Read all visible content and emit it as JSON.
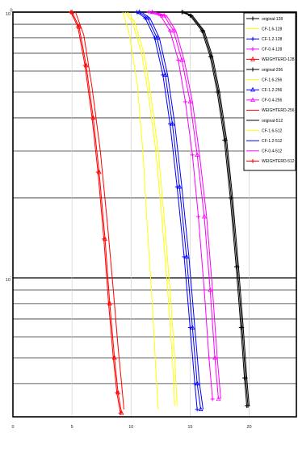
{
  "chart_data": {
    "type": "line",
    "title": "",
    "xlabel": "",
    "ylabel": "",
    "xlim": [
      0,
      24
    ],
    "ylim": [
      0.03,
      1.0
    ],
    "yscale": "log",
    "grid": true,
    "legend_placement": "top-right",
    "x_ticks": [
      0,
      5,
      10,
      15,
      20
    ],
    "x_tick_labels": [
      "0",
      "5",
      "10",
      "15",
      "20"
    ],
    "y_ticks": [
      0.1,
      1.0
    ],
    "y_tick_labels": [
      {
        "base": "10",
        "exp": "-1"
      },
      {
        "base": "10",
        "exp": "0"
      }
    ],
    "series": [
      {
        "name": "original-128",
        "color": "#000000",
        "marker": "plus",
        "x": [
          14.3,
          15.0,
          16.0,
          16.7,
          17.3,
          17.9,
          18.4,
          18.9,
          19.3,
          19.6,
          19.8
        ],
        "y": [
          1.0,
          0.97,
          0.85,
          0.68,
          0.5,
          0.33,
          0.2,
          0.11,
          0.065,
          0.042,
          0.033
        ]
      },
      {
        "name": "CF-1.6-128",
        "color": "#ffff00",
        "marker": "none",
        "x": [
          9.3,
          9.8,
          10.5,
          11.0,
          11.4,
          11.8,
          12.1,
          12.3
        ],
        "y": [
          1.0,
          0.85,
          0.55,
          0.3,
          0.15,
          0.08,
          0.045,
          0.032
        ]
      },
      {
        "name": "CF-1.2-128",
        "color": "#0000ff",
        "marker": "plus",
        "x": [
          10.5,
          11.2,
          12.0,
          12.7,
          13.3,
          13.9,
          14.5,
          15.0,
          15.4,
          15.6
        ],
        "y": [
          1.0,
          0.95,
          0.8,
          0.58,
          0.38,
          0.22,
          0.12,
          0.065,
          0.04,
          0.032
        ]
      },
      {
        "name": "CF-0.4-128",
        "color": "#ff00ff",
        "marker": "plus",
        "x": [
          11.5,
          12.5,
          13.3,
          14.0,
          14.6,
          15.2,
          15.7,
          16.2,
          16.6,
          16.9
        ],
        "y": [
          1.0,
          0.97,
          0.85,
          0.66,
          0.46,
          0.29,
          0.17,
          0.09,
          0.05,
          0.035
        ]
      },
      {
        "name": "WEIGHTERD-128",
        "color": "#ff0000",
        "marker": "triangle",
        "x": [
          5.0,
          5.6,
          6.2,
          6.8,
          7.3,
          7.8,
          8.2,
          8.6,
          8.9,
          9.2
        ],
        "y": [
          1.0,
          0.88,
          0.63,
          0.4,
          0.25,
          0.14,
          0.08,
          0.05,
          0.037,
          0.031
        ]
      },
      {
        "name": "original-256",
        "color": "#000000",
        "marker": "plus",
        "x": [
          14.4,
          15.1,
          16.1,
          16.8,
          17.4,
          18.0,
          18.5,
          19.0,
          19.4,
          19.7,
          19.9
        ],
        "y": [
          1.0,
          0.97,
          0.85,
          0.68,
          0.5,
          0.33,
          0.2,
          0.11,
          0.065,
          0.042,
          0.033
        ]
      },
      {
        "name": "CF-1.6-256",
        "color": "#ffff00",
        "marker": "none",
        "x": [
          9.5,
          10.1,
          10.9,
          11.5,
          12.1,
          12.6,
          13.1,
          13.5,
          13.7
        ],
        "y": [
          1.0,
          0.92,
          0.7,
          0.48,
          0.3,
          0.17,
          0.09,
          0.05,
          0.033
        ]
      },
      {
        "name": "CF-1.2-256",
        "color": "#0000ff",
        "marker": "triangle",
        "x": [
          10.7,
          11.4,
          12.2,
          12.9,
          13.5,
          14.1,
          14.7,
          15.2,
          15.6,
          15.9
        ],
        "y": [
          1.0,
          0.95,
          0.8,
          0.58,
          0.38,
          0.22,
          0.12,
          0.065,
          0.04,
          0.032
        ]
      },
      {
        "name": "CF-0.4-256",
        "color": "#ff00ff",
        "marker": "triangle",
        "x": [
          11.8,
          12.8,
          13.6,
          14.3,
          15.0,
          15.6,
          16.2,
          16.7,
          17.1,
          17.4
        ],
        "y": [
          1.0,
          0.97,
          0.85,
          0.66,
          0.46,
          0.29,
          0.17,
          0.09,
          0.05,
          0.035
        ]
      },
      {
        "name": "WEIGHTERD-256",
        "color": "#ff0000",
        "marker": "none",
        "x": [
          5.3,
          6.0,
          6.7,
          7.4,
          8.0,
          8.5,
          8.9,
          9.2,
          9.4
        ],
        "y": [
          1.0,
          0.82,
          0.52,
          0.3,
          0.16,
          0.09,
          0.055,
          0.04,
          0.032
        ]
      },
      {
        "name": "original-512",
        "color": "#000000",
        "marker": "none",
        "x": [
          14.5,
          15.2,
          16.2,
          16.9,
          17.5,
          18.1,
          18.6,
          19.1,
          19.5,
          19.8,
          20.0
        ],
        "y": [
          1.0,
          0.97,
          0.85,
          0.68,
          0.5,
          0.33,
          0.2,
          0.11,
          0.065,
          0.042,
          0.033
        ]
      },
      {
        "name": "CF-1.6-512",
        "color": "#ffff00",
        "marker": "none",
        "x": [
          9.7,
          10.3,
          11.1,
          11.7,
          12.3,
          12.8,
          13.3,
          13.7,
          13.9
        ],
        "y": [
          1.0,
          0.92,
          0.7,
          0.48,
          0.3,
          0.17,
          0.09,
          0.05,
          0.033
        ]
      },
      {
        "name": "CF-1.2-512",
        "color": "#0000ff",
        "marker": "none",
        "x": [
          10.9,
          11.6,
          12.4,
          13.1,
          13.7,
          14.3,
          14.9,
          15.4,
          15.8,
          16.1
        ],
        "y": [
          1.0,
          0.95,
          0.8,
          0.58,
          0.38,
          0.22,
          0.12,
          0.065,
          0.04,
          0.032
        ]
      },
      {
        "name": "CF-0.4-512",
        "color": "#ff00ff",
        "marker": "none",
        "x": [
          12.0,
          13.0,
          13.8,
          14.5,
          15.2,
          15.8,
          16.4,
          16.9,
          17.3,
          17.6
        ],
        "y": [
          1.0,
          0.97,
          0.85,
          0.66,
          0.46,
          0.29,
          0.17,
          0.09,
          0.05,
          0.035
        ]
      },
      {
        "name": "WEIGHTERD-512",
        "color": "#ff0000",
        "marker": "plus",
        "x": [
          4.9,
          5.5,
          6.1,
          6.7,
          7.2,
          7.7,
          8.1,
          8.5,
          8.8,
          9.1
        ],
        "y": [
          1.0,
          0.88,
          0.63,
          0.4,
          0.25,
          0.14,
          0.08,
          0.05,
          0.037,
          0.031
        ]
      }
    ]
  }
}
